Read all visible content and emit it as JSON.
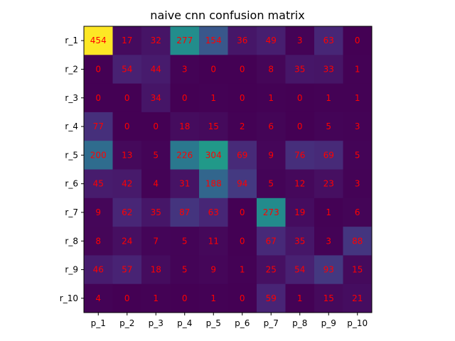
{
  "chart_data": {
    "type": "heatmap",
    "title": "naive cnn confusion matrix",
    "xlabel": "",
    "ylabel": "",
    "x_categories": [
      "p_1",
      "p_2",
      "p_3",
      "p_4",
      "p_5",
      "p_6",
      "p_7",
      "p_8",
      "p_9",
      "p_10"
    ],
    "y_categories": [
      "r_1",
      "r_2",
      "r_3",
      "r_4",
      "r_5",
      "r_6",
      "r_7",
      "r_8",
      "r_9",
      "r_10"
    ],
    "values": [
      [
        454,
        17,
        32,
        277,
        154,
        36,
        49,
        3,
        63,
        0
      ],
      [
        0,
        54,
        44,
        3,
        0,
        0,
        8,
        35,
        33,
        1
      ],
      [
        0,
        0,
        34,
        0,
        1,
        0,
        1,
        0,
        1,
        1
      ],
      [
        77,
        0,
        0,
        18,
        15,
        2,
        6,
        0,
        5,
        3
      ],
      [
        200,
        13,
        5,
        226,
        304,
        69,
        9,
        76,
        69,
        5
      ],
      [
        45,
        42,
        4,
        31,
        188,
        94,
        5,
        12,
        23,
        3
      ],
      [
        9,
        62,
        35,
        87,
        63,
        0,
        273,
        19,
        1,
        6
      ],
      [
        8,
        24,
        7,
        5,
        11,
        0,
        67,
        35,
        3,
        88
      ],
      [
        46,
        57,
        18,
        5,
        9,
        1,
        25,
        54,
        93,
        15
      ],
      [
        4,
        0,
        1,
        0,
        1,
        0,
        59,
        1,
        15,
        21
      ]
    ],
    "value_range": [
      0,
      454
    ],
    "colormap": "viridis",
    "annotation_color": "#ff0000",
    "grid": false,
    "legend": "none"
  }
}
